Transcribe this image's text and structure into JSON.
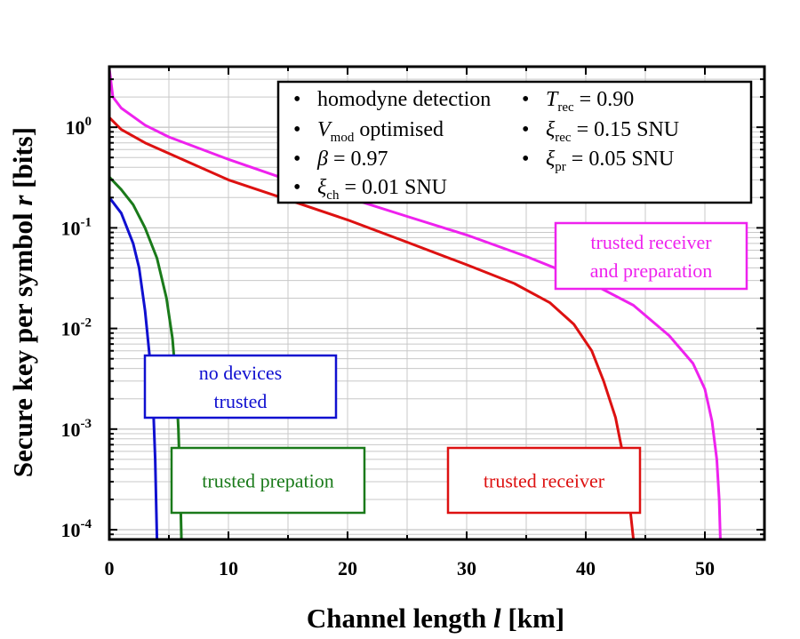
{
  "chart_data": {
    "type": "line",
    "xlabel": "Channel length l [km]",
    "ylabel": "Secure key per symbol r [bits]",
    "xlim": [
      0,
      55
    ],
    "ylim": [
      8e-05,
      4
    ],
    "yscale": "log",
    "x_ticks": [
      "0",
      "10",
      "20",
      "30",
      "40",
      "50"
    ],
    "y_ticks": [
      {
        "base": "10",
        "exp": "0"
      },
      {
        "base": "10",
        "exp": "-1"
      },
      {
        "base": "10",
        "exp": "-2"
      },
      {
        "base": "10",
        "exp": "-3"
      },
      {
        "base": "10",
        "exp": "-4"
      }
    ],
    "series": [
      {
        "name": "no devices trusted",
        "label_lines": [
          "no devices",
          "trusted"
        ],
        "color": "#1010d0",
        "points": [
          [
            0,
            0.2
          ],
          [
            1,
            0.14
          ],
          [
            2,
            0.07
          ],
          [
            2.5,
            0.04
          ],
          [
            3,
            0.015
          ],
          [
            3.4,
            0.005
          ],
          [
            3.7,
            0.0015
          ],
          [
            3.85,
            0.0005
          ],
          [
            3.95,
            0.00015
          ],
          [
            4.0,
            8e-05
          ]
        ]
      },
      {
        "name": "trusted prepation",
        "label_lines": [
          "trusted prepation"
        ],
        "color": "#1a7a1a",
        "points": [
          [
            0,
            0.32
          ],
          [
            1,
            0.24
          ],
          [
            2,
            0.17
          ],
          [
            3,
            0.1
          ],
          [
            4,
            0.05
          ],
          [
            4.8,
            0.02
          ],
          [
            5.3,
            0.008
          ],
          [
            5.6,
            0.003
          ],
          [
            5.8,
            0.001
          ],
          [
            5.9,
            0.0004
          ],
          [
            6.0,
            0.00015
          ],
          [
            6.05,
            8e-05
          ]
        ]
      },
      {
        "name": "trusted receiver",
        "label_lines": [
          "trusted receiver"
        ],
        "color": "#dd1111",
        "points": [
          [
            0,
            1.25
          ],
          [
            1,
            0.95
          ],
          [
            3,
            0.7
          ],
          [
            5,
            0.55
          ],
          [
            10,
            0.3
          ],
          [
            15,
            0.19
          ],
          [
            20,
            0.12
          ],
          [
            25,
            0.072
          ],
          [
            30,
            0.043
          ],
          [
            34,
            0.028
          ],
          [
            37,
            0.018
          ],
          [
            39,
            0.011
          ],
          [
            40.5,
            0.006
          ],
          [
            41.5,
            0.003
          ],
          [
            42.5,
            0.0013
          ],
          [
            43.2,
            0.0005
          ],
          [
            43.7,
            0.00017
          ],
          [
            44.0,
            8e-05
          ]
        ]
      },
      {
        "name": "trusted receiver and preparation",
        "label_lines": [
          "trusted receiver",
          "and preparation"
        ],
        "color": "#ee22ee",
        "points": [
          [
            0,
            3.8
          ],
          [
            0.3,
            2.0
          ],
          [
            1,
            1.55
          ],
          [
            3,
            1.05
          ],
          [
            5,
            0.8
          ],
          [
            10,
            0.48
          ],
          [
            15,
            0.3
          ],
          [
            20,
            0.2
          ],
          [
            25,
            0.13
          ],
          [
            30,
            0.085
          ],
          [
            35,
            0.052
          ],
          [
            40,
            0.03
          ],
          [
            44,
            0.017
          ],
          [
            47,
            0.0085
          ],
          [
            49,
            0.0045
          ],
          [
            50,
            0.0025
          ],
          [
            50.6,
            0.0012
          ],
          [
            51,
            0.0005
          ],
          [
            51.2,
            0.0002
          ],
          [
            51.3,
            8e-05
          ]
        ]
      }
    ],
    "legend": {
      "position": "top-right",
      "items": [
        {
          "bullet": "•",
          "main": "homodyne detection",
          "sub": "",
          "rest": ""
        },
        {
          "bullet": "•",
          "main": "V",
          "sub": "mod",
          "rest": " optimised"
        },
        {
          "bullet": "•",
          "main": "β",
          "sub": "",
          "rest": " = 0.97"
        },
        {
          "bullet": "•",
          "main": "ξ",
          "sub": "ch",
          "rest": " = 0.01 SNU"
        },
        {
          "bullet": "•",
          "main": "T",
          "sub": "rec",
          "rest": " = 0.90"
        },
        {
          "bullet": "•",
          "main": "ξ",
          "sub": "rec",
          "rest": " = 0.15 SNU"
        },
        {
          "bullet": "•",
          "main": "ξ",
          "sub": "pr",
          "rest": " = 0.05 SNU"
        }
      ]
    }
  }
}
